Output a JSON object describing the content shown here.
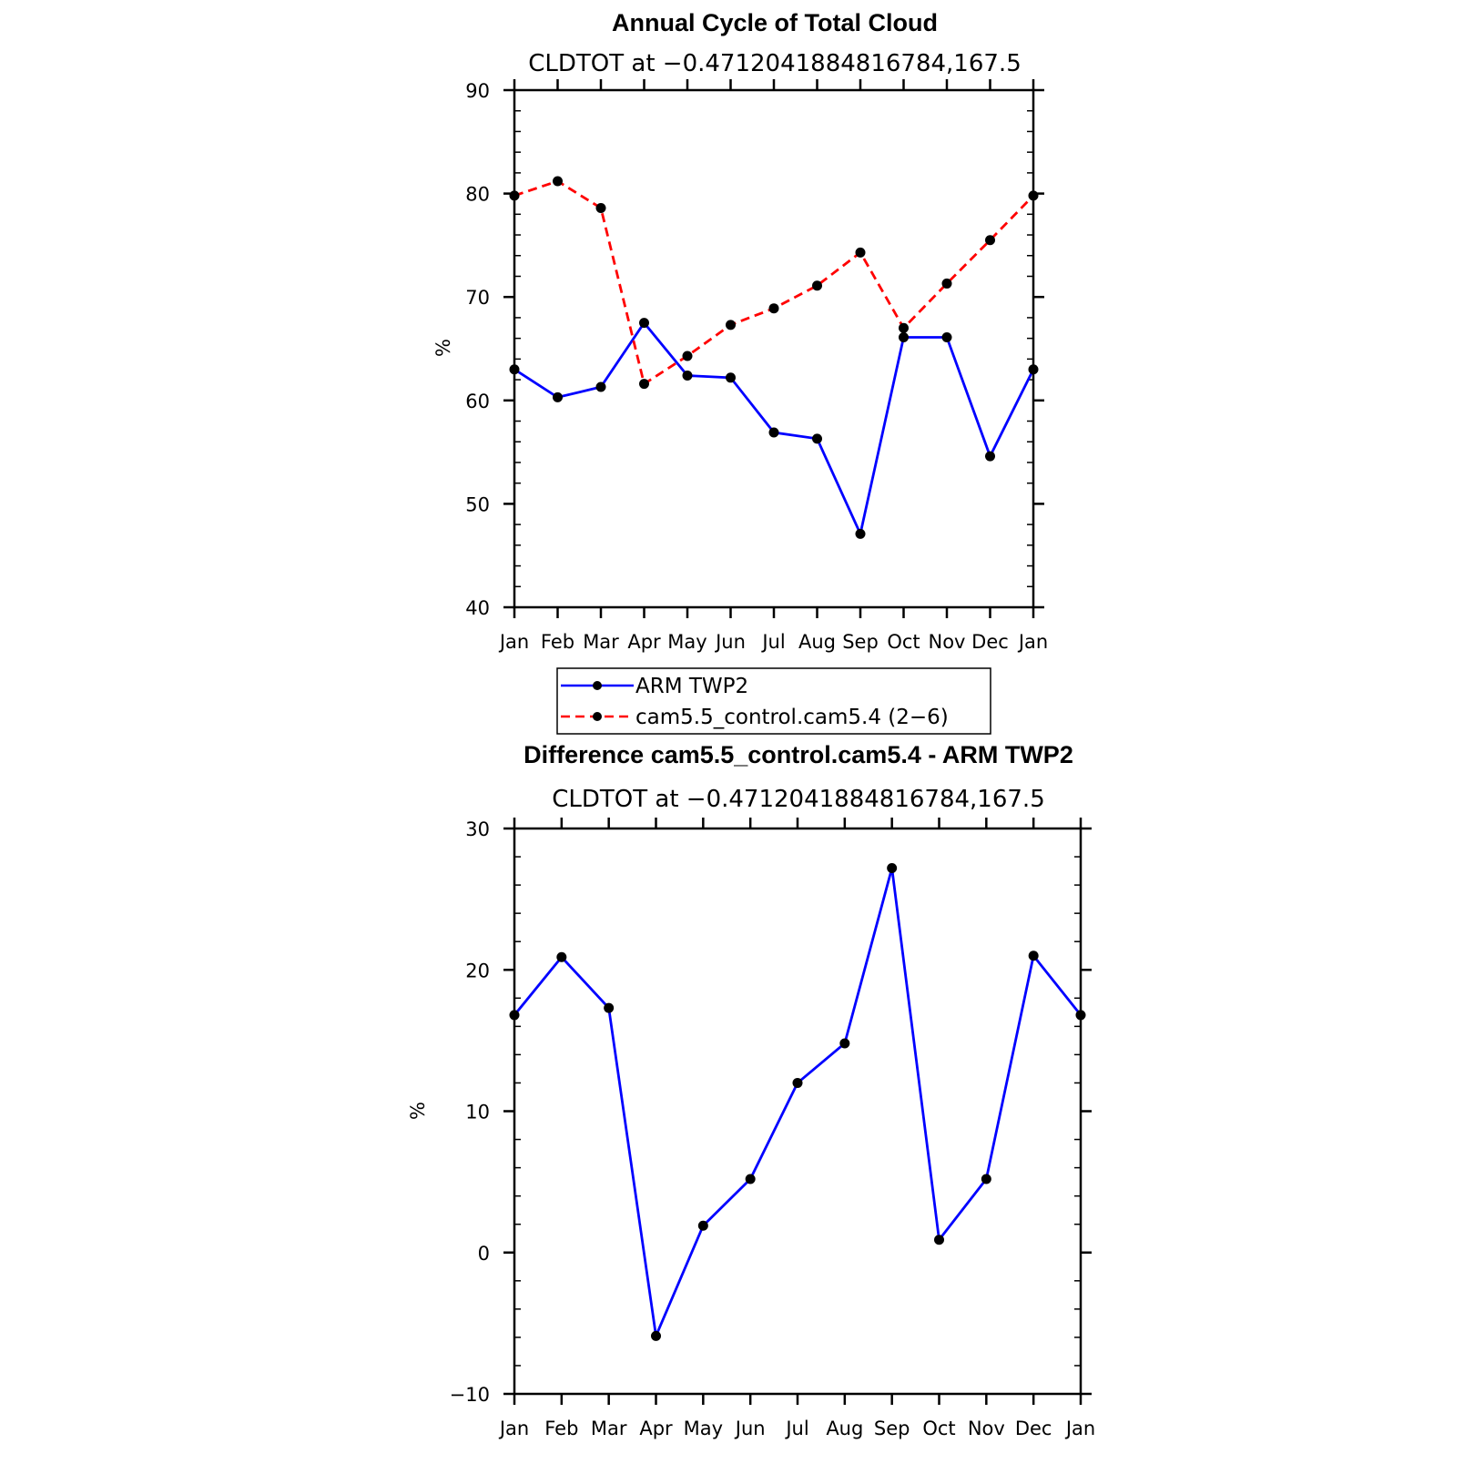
{
  "chart_data": [
    {
      "type": "line",
      "title": "Annual Cycle of Total Cloud",
      "subtitle": "CLDTOT at −0.4712041884816784,167.5",
      "ylabel": "%",
      "categories": [
        "Jan",
        "Feb",
        "Mar",
        "Apr",
        "May",
        "Jun",
        "Jul",
        "Aug",
        "Sep",
        "Oct",
        "Nov",
        "Dec",
        "Jan"
      ],
      "ylim": [
        40,
        90
      ],
      "yticks": [
        40,
        50,
        60,
        70,
        80,
        90
      ],
      "ytick_labels": [
        "40",
        "50",
        "60",
        "70",
        "80",
        "90"
      ],
      "series": [
        {
          "name": "ARM TWP2",
          "color": "#0000ff",
          "dash": "solid",
          "values": [
            63.0,
            60.3,
            61.3,
            67.5,
            62.4,
            62.2,
            56.9,
            56.3,
            47.1,
            66.1,
            66.1,
            54.6,
            63.0
          ]
        },
        {
          "name": "cam5.5_control.cam5.4 (2−6)",
          "color": "#ff0000",
          "dash": "dashed",
          "values": [
            79.8,
            81.2,
            78.6,
            61.6,
            64.3,
            67.3,
            68.9,
            71.1,
            74.3,
            67.0,
            71.3,
            75.5,
            79.8
          ]
        }
      ],
      "legend": "below"
    },
    {
      "type": "line",
      "title": "Difference cam5.5_control.cam5.4 - ARM TWP2",
      "subtitle": "CLDTOT at −0.4712041884816784,167.5",
      "ylabel": "%",
      "categories": [
        "Jan",
        "Feb",
        "Mar",
        "Apr",
        "May",
        "Jun",
        "Jul",
        "Aug",
        "Sep",
        "Oct",
        "Nov",
        "Dec",
        "Jan"
      ],
      "ylim": [
        -10,
        30
      ],
      "yticks": [
        -10,
        0,
        10,
        20,
        30
      ],
      "ytick_labels": [
        "−10",
        "0",
        "10",
        "20",
        "30"
      ],
      "series": [
        {
          "color": "#0000ff",
          "dash": "solid",
          "values": [
            16.8,
            20.9,
            17.3,
            -5.9,
            1.9,
            5.2,
            12.0,
            14.8,
            27.2,
            0.9,
            5.2,
            21.0,
            16.8
          ]
        }
      ]
    }
  ]
}
